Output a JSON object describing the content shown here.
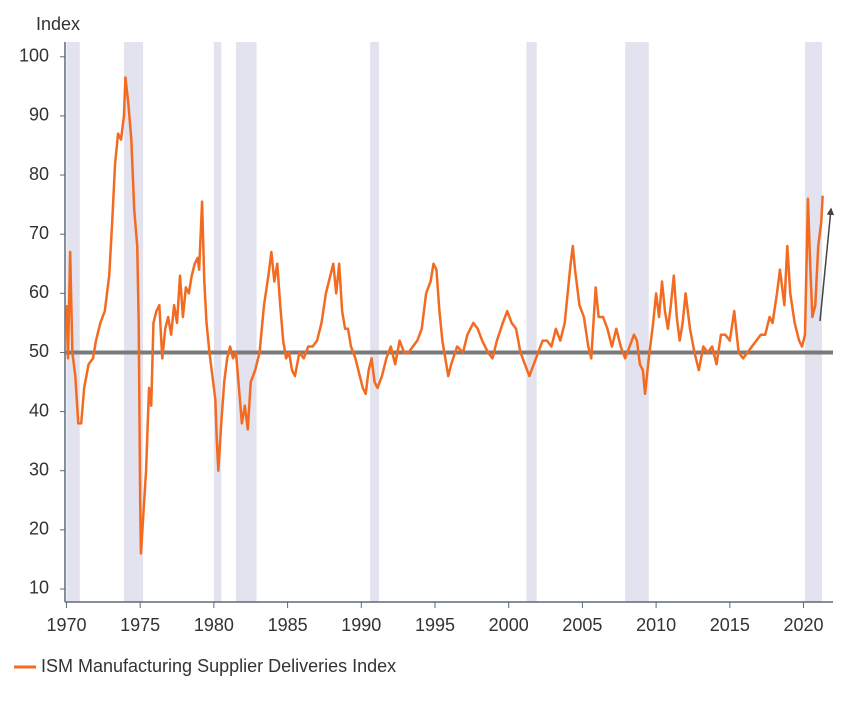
{
  "chart_data": {
    "type": "line",
    "title": "Index",
    "series": [
      {
        "name": "ISM Manufacturing Supplier Deliveries Index",
        "color": "#f26b21",
        "x": [
          1970.0,
          1970.1,
          1970.25,
          1970.4,
          1970.6,
          1970.8,
          1971.0,
          1971.2,
          1971.5,
          1971.8,
          1972.0,
          1972.3,
          1972.6,
          1972.9,
          1973.1,
          1973.3,
          1973.5,
          1973.7,
          1973.9,
          1974.0,
          1974.2,
          1974.4,
          1974.6,
          1974.8,
          1974.9,
          1975.0,
          1975.05,
          1975.2,
          1975.4,
          1975.6,
          1975.75,
          1975.9,
          1976.1,
          1976.3,
          1976.5,
          1976.7,
          1976.9,
          1977.1,
          1977.3,
          1977.5,
          1977.7,
          1977.9,
          1978.1,
          1978.3,
          1978.5,
          1978.7,
          1978.9,
          1979.0,
          1979.2,
          1979.35,
          1979.5,
          1979.7,
          1979.9,
          1980.1,
          1980.2,
          1980.3,
          1980.5,
          1980.7,
          1980.9,
          1981.1,
          1981.3,
          1981.5,
          1981.7,
          1981.9,
          1982.1,
          1982.3,
          1982.5,
          1982.8,
          1983.1,
          1983.4,
          1983.7,
          1983.9,
          1984.1,
          1984.3,
          1984.5,
          1984.7,
          1984.9,
          1985.1,
          1985.3,
          1985.5,
          1985.8,
          1986.1,
          1986.4,
          1986.7,
          1987.0,
          1987.3,
          1987.6,
          1987.9,
          1988.1,
          1988.3,
          1988.5,
          1988.7,
          1988.9,
          1989.1,
          1989.3,
          1989.6,
          1989.9,
          1990.1,
          1990.3,
          1990.5,
          1990.7,
          1990.9,
          1991.1,
          1991.4,
          1991.7,
          1992.0,
          1992.3,
          1992.6,
          1992.9,
          1993.2,
          1993.5,
          1993.8,
          1994.1,
          1994.4,
          1994.7,
          1994.9,
          1995.1,
          1995.3,
          1995.5,
          1995.7,
          1995.9,
          1996.1,
          1996.5,
          1996.9,
          1997.2,
          1997.6,
          1997.9,
          1998.2,
          1998.6,
          1998.9,
          1999.2,
          1999.6,
          1999.9,
          2000.2,
          2000.5,
          2000.8,
          2001.1,
          2001.4,
          2001.7,
          2002.0,
          2002.3,
          2002.6,
          2002.9,
          2003.2,
          2003.5,
          2003.8,
          2004.0,
          2004.2,
          2004.35,
          2004.5,
          2004.8,
          2005.1,
          2005.4,
          2005.6,
          2005.9,
          2006.1,
          2006.4,
          2006.7,
          2007.0,
          2007.3,
          2007.6,
          2007.9,
          2008.2,
          2008.5,
          2008.7,
          2008.9,
          2009.1,
          2009.25,
          2009.5,
          2009.8,
          2010.0,
          2010.2,
          2010.4,
          2010.6,
          2010.8,
          2011.0,
          2011.2,
          2011.4,
          2011.6,
          2011.8,
          2012.0,
          2012.3,
          2012.6,
          2012.9,
          2013.2,
          2013.5,
          2013.8,
          2014.1,
          2014.4,
          2014.7,
          2015.0,
          2015.3,
          2015.6,
          2015.9,
          2016.2,
          2016.5,
          2016.8,
          2017.1,
          2017.4,
          2017.7,
          2017.9,
          2018.2,
          2018.4,
          2018.7,
          2018.9,
          2019.1,
          2019.4,
          2019.7,
          2019.9,
          2020.1,
          2020.3,
          2020.45,
          2020.6,
          2020.8,
          2021.0,
          2021.2,
          2021.3
        ],
        "values": [
          58,
          49,
          67,
          50,
          46,
          38,
          38,
          44,
          48,
          49,
          52,
          55,
          57,
          63,
          72,
          82,
          87,
          86,
          90,
          96.5,
          92,
          86,
          74,
          68,
          55,
          25,
          16,
          22,
          30,
          44,
          41,
          55,
          57,
          58,
          49,
          54,
          56,
          53,
          58,
          55,
          63,
          56,
          61,
          60,
          63,
          65,
          66,
          64,
          75.5,
          62,
          55,
          50,
          46,
          42,
          35,
          30,
          38,
          45,
          49,
          51,
          49,
          50,
          44,
          38,
          41,
          37,
          45,
          47,
          50,
          58,
          63,
          67,
          62,
          65,
          58,
          52,
          49,
          50,
          47,
          46,
          50,
          49,
          51,
          51,
          52,
          55,
          60,
          63,
          65,
          60,
          65,
          57,
          54,
          54,
          51,
          49,
          46,
          44,
          43,
          47,
          49,
          45,
          44,
          46,
          49,
          51,
          48,
          52,
          50,
          50,
          51,
          52,
          54,
          60,
          62,
          65,
          64,
          57,
          52,
          49,
          46,
          48,
          51,
          50,
          53,
          55,
          54,
          52,
          50,
          49,
          52,
          55,
          57,
          55,
          54,
          50,
          48,
          46,
          48,
          50,
          52,
          52,
          51,
          54,
          52,
          55,
          60,
          65,
          68,
          64,
          58,
          56,
          51,
          49,
          61,
          56,
          56,
          54,
          51,
          54,
          51,
          49,
          51,
          53,
          52,
          48,
          47,
          43,
          49,
          55,
          60,
          56,
          62,
          57,
          54,
          58,
          63,
          56,
          52,
          55,
          60,
          54,
          50,
          47,
          51,
          50,
          51,
          48,
          53,
          53,
          52,
          57,
          50,
          49,
          50,
          51,
          52,
          53,
          53,
          56,
          55,
          60,
          64,
          58,
          68,
          60,
          55,
          52,
          51,
          53,
          76,
          65,
          56,
          58,
          68,
          72,
          76.5
        ]
      }
    ],
    "shaded_periods": [
      [
        1970.0,
        1970.9
      ],
      [
        1973.9,
        1975.2
      ],
      [
        1980.0,
        1980.5
      ],
      [
        1981.5,
        1982.9
      ],
      [
        1990.6,
        1991.2
      ],
      [
        2001.2,
        2001.9
      ],
      [
        2007.9,
        2009.5
      ],
      [
        2020.1,
        2021.25
      ]
    ],
    "reference_line": 50,
    "xlim": [
      1969.9,
      2022
    ],
    "xticks": [
      1970,
      1975,
      1980,
      1985,
      1990,
      1995,
      2000,
      2005,
      2010,
      2015,
      2020
    ],
    "ylim": [
      7.8,
      102.5
    ],
    "yticks": [
      10,
      20,
      30,
      40,
      50,
      60,
      70,
      80,
      90,
      100
    ]
  }
}
